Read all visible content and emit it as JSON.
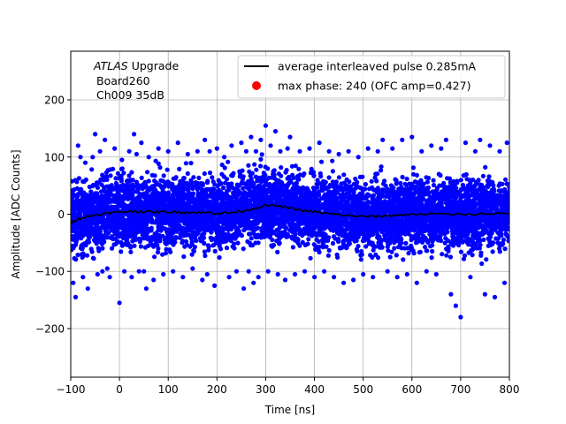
{
  "chart_data": {
    "type": "scatter",
    "title": "",
    "xlabel": "Time [ns]",
    "ylabel": "Amplitude [ADC Counts]",
    "xlim": [
      -100,
      800
    ],
    "ylim": [
      -285,
      285
    ],
    "grid": true,
    "xticks": [
      -100,
      0,
      100,
      200,
      300,
      400,
      500,
      600,
      700,
      800
    ],
    "xtick_labels": [
      "−100",
      "0",
      "100",
      "200",
      "300",
      "400",
      "500",
      "600",
      "700",
      "800"
    ],
    "yticks": [
      -200,
      -100,
      0,
      100,
      200
    ],
    "ytick_labels": [
      "−200",
      "−100",
      "0",
      "100",
      "200"
    ],
    "annotation": {
      "experiment": "ATLAS",
      "experiment_suffix": " Upgrade",
      "board": "Board260",
      "channel": "Ch009 35dB"
    },
    "legend": {
      "placement": "top-right",
      "entries": [
        {
          "label": "average interleaved pulse 0.285mA",
          "marker": "line",
          "color": "#000000"
        },
        {
          "label": "max phase: 240 (OFC amp=0.427)",
          "marker": "dot",
          "color": "#ff0000"
        }
      ]
    },
    "series": [
      {
        "name": "samples",
        "kind": "scatter",
        "color": "#0000ff",
        "band_center": [
          [
            -100,
            -12
          ],
          [
            -50,
            0
          ],
          [
            0,
            5
          ],
          [
            100,
            5
          ],
          [
            200,
            3
          ],
          [
            250,
            8
          ],
          [
            300,
            16
          ],
          [
            350,
            12
          ],
          [
            400,
            5
          ],
          [
            450,
            0
          ],
          [
            500,
            -4
          ],
          [
            550,
            -2
          ],
          [
            600,
            0
          ],
          [
            700,
            0
          ],
          [
            800,
            0
          ]
        ],
        "band_halfwidth": 60,
        "outliers": [
          [
            -98,
            30
          ],
          [
            -95,
            -120
          ],
          [
            -90,
            -145
          ],
          [
            -85,
            120
          ],
          [
            -80,
            100
          ],
          [
            -75,
            -110
          ],
          [
            -70,
            90
          ],
          [
            -65,
            -130
          ],
          [
            -55,
            100
          ],
          [
            -50,
            140
          ],
          [
            -45,
            -105
          ],
          [
            -40,
            110
          ],
          [
            -35,
            -100
          ],
          [
            -30,
            130
          ],
          [
            -25,
            -95
          ],
          [
            -20,
            -110
          ],
          [
            -10,
            115
          ],
          [
            0,
            -155
          ],
          [
            5,
            95
          ],
          [
            10,
            -100
          ],
          [
            20,
            110
          ],
          [
            25,
            -110
          ],
          [
            30,
            140
          ],
          [
            35,
            105
          ],
          [
            40,
            -100
          ],
          [
            45,
            125
          ],
          [
            50,
            -100
          ],
          [
            55,
            -130
          ],
          [
            60,
            100
          ],
          [
            70,
            -115
          ],
          [
            80,
            115
          ],
          [
            90,
            -105
          ],
          [
            100,
            110
          ],
          [
            110,
            -100
          ],
          [
            120,
            125
          ],
          [
            130,
            -110
          ],
          [
            140,
            105
          ],
          [
            150,
            -95
          ],
          [
            160,
            110
          ],
          [
            170,
            -115
          ],
          [
            175,
            130
          ],
          [
            180,
            -105
          ],
          [
            185,
            110
          ],
          [
            195,
            -125
          ],
          [
            200,
            115
          ],
          [
            215,
            100
          ],
          [
            225,
            -110
          ],
          [
            230,
            120
          ],
          [
            240,
            -100
          ],
          [
            250,
            125
          ],
          [
            255,
            -130
          ],
          [
            260,
            110
          ],
          [
            265,
            -100
          ],
          [
            270,
            135
          ],
          [
            275,
            -120
          ],
          [
            280,
            110
          ],
          [
            285,
            -110
          ],
          [
            290,
            130
          ],
          [
            300,
            155
          ],
          [
            305,
            -100
          ],
          [
            310,
            120
          ],
          [
            320,
            145
          ],
          [
            325,
            -105
          ],
          [
            330,
            110
          ],
          [
            340,
            -115
          ],
          [
            345,
            115
          ],
          [
            350,
            135
          ],
          [
            360,
            -105
          ],
          [
            370,
            110
          ],
          [
            380,
            -100
          ],
          [
            390,
            115
          ],
          [
            400,
            -110
          ],
          [
            410,
            125
          ],
          [
            420,
            -100
          ],
          [
            430,
            110
          ],
          [
            440,
            -110
          ],
          [
            450,
            105
          ],
          [
            460,
            -120
          ],
          [
            470,
            110
          ],
          [
            480,
            -115
          ],
          [
            490,
            100
          ],
          [
            500,
            -105
          ],
          [
            510,
            115
          ],
          [
            520,
            -110
          ],
          [
            530,
            110
          ],
          [
            540,
            130
          ],
          [
            550,
            -100
          ],
          [
            560,
            115
          ],
          [
            570,
            -110
          ],
          [
            580,
            130
          ],
          [
            590,
            -105
          ],
          [
            600,
            135
          ],
          [
            610,
            -120
          ],
          [
            620,
            110
          ],
          [
            630,
            -100
          ],
          [
            640,
            120
          ],
          [
            650,
            -105
          ],
          [
            660,
            115
          ],
          [
            670,
            130
          ],
          [
            680,
            -140
          ],
          [
            690,
            -160
          ],
          [
            700,
            -180
          ],
          [
            710,
            125
          ],
          [
            720,
            -110
          ],
          [
            730,
            110
          ],
          [
            740,
            130
          ],
          [
            750,
            -140
          ],
          [
            760,
            120
          ],
          [
            770,
            -145
          ],
          [
            780,
            110
          ],
          [
            790,
            -120
          ],
          [
            795,
            125
          ]
        ]
      },
      {
        "name": "average interleaved pulse 0.285mA",
        "kind": "line",
        "color": "#000000",
        "points": [
          [
            -100,
            -15
          ],
          [
            -90,
            -10
          ],
          [
            -75,
            -6
          ],
          [
            -60,
            -3
          ],
          [
            -40,
            0
          ],
          [
            -20,
            2
          ],
          [
            0,
            4
          ],
          [
            20,
            5
          ],
          [
            40,
            5
          ],
          [
            60,
            4
          ],
          [
            80,
            4
          ],
          [
            100,
            4
          ],
          [
            120,
            4
          ],
          [
            140,
            3
          ],
          [
            160,
            3
          ],
          [
            180,
            3
          ],
          [
            200,
            2
          ],
          [
            220,
            2
          ],
          [
            240,
            4
          ],
          [
            260,
            7
          ],
          [
            280,
            11
          ],
          [
            300,
            15
          ],
          [
            320,
            15
          ],
          [
            340,
            12
          ],
          [
            360,
            9
          ],
          [
            380,
            6
          ],
          [
            400,
            4
          ],
          [
            420,
            2
          ],
          [
            440,
            0
          ],
          [
            460,
            -2
          ],
          [
            480,
            -3
          ],
          [
            500,
            -4
          ],
          [
            520,
            -4
          ],
          [
            540,
            -3
          ],
          [
            560,
            -2
          ],
          [
            580,
            -1
          ],
          [
            600,
            0
          ],
          [
            650,
            0
          ],
          [
            700,
            0
          ],
          [
            750,
            1
          ],
          [
            800,
            1
          ]
        ]
      }
    ]
  }
}
